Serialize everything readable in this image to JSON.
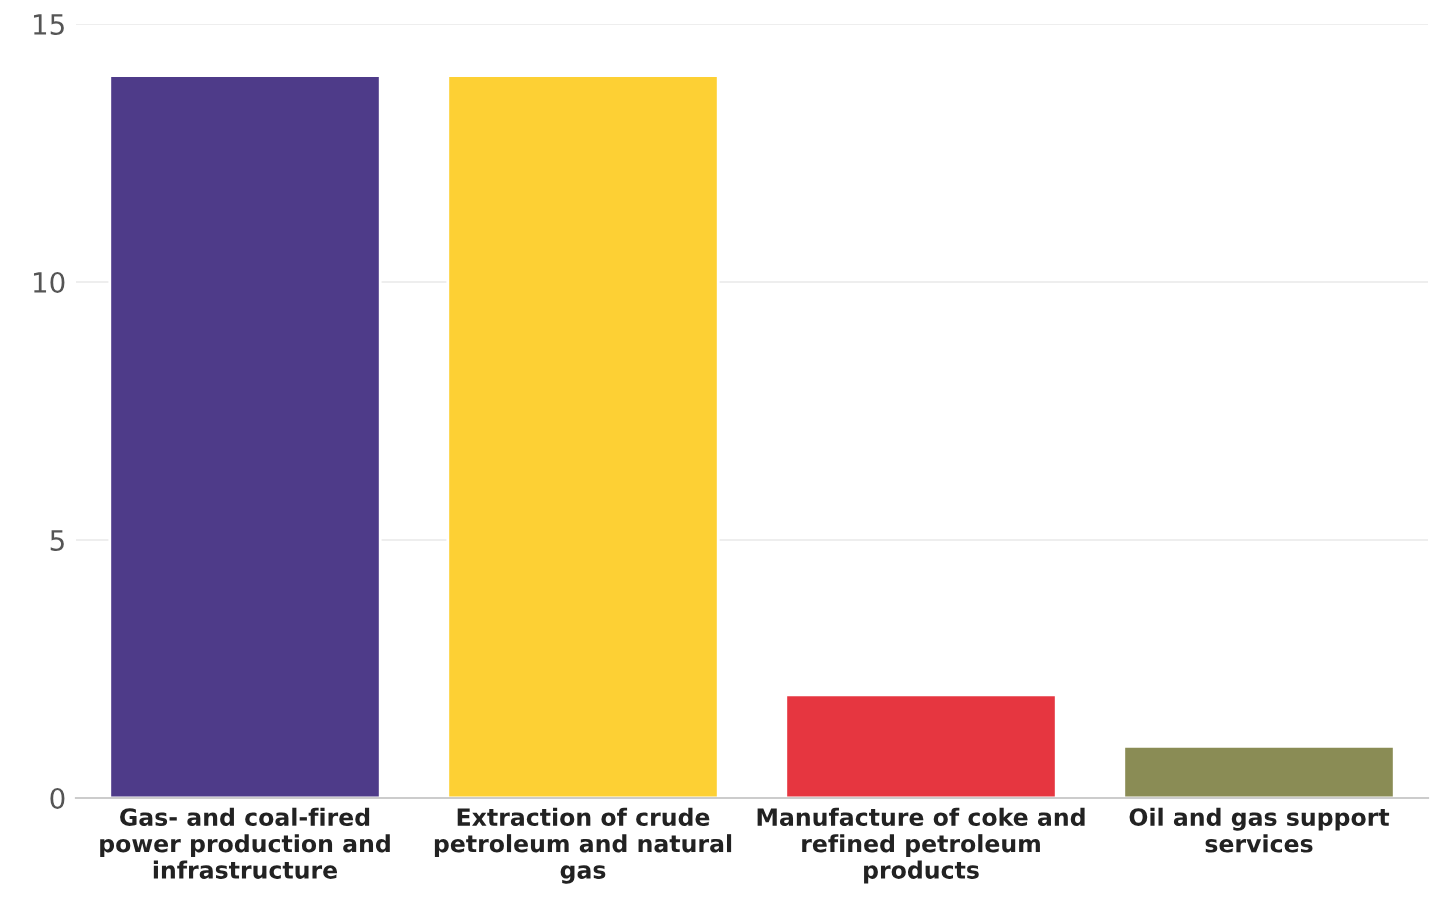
{
  "chart_data": {
    "type": "bar",
    "categories": [
      "Gas- and coal-fired power production and infrastructure",
      "Extraction of crude petroleum and natural gas",
      "Manufacture of coke and refined petroleum products",
      "Oil and gas support services"
    ],
    "values": [
      14,
      14,
      2,
      1
    ],
    "colors": [
      "#4e3b89",
      "#fdd034",
      "#e63640",
      "#8a8c55"
    ],
    "ylim": [
      0,
      15
    ],
    "yticks": [
      0,
      5,
      10,
      15
    ],
    "grid": "y"
  }
}
